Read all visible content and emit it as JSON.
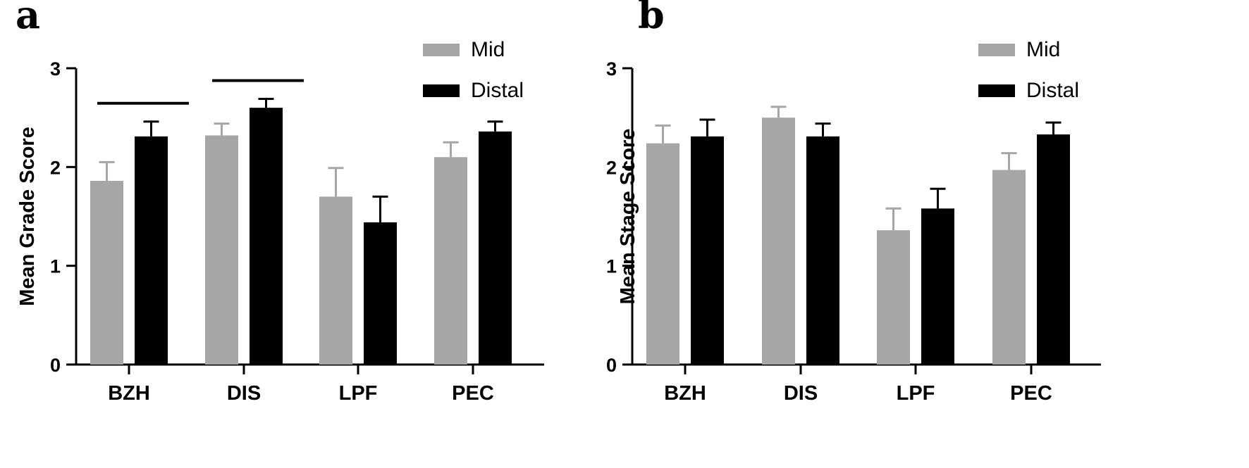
{
  "chart_data": [
    {
      "type": "bar",
      "panel": "a",
      "categories": [
        "BZH",
        "DIS",
        "LPF",
        "PEC"
      ],
      "ylabel": "Mean Grade Score",
      "xlabel": "",
      "ylim": [
        0,
        3
      ],
      "yticks": [
        0,
        1,
        2,
        3
      ],
      "series": [
        {
          "name": "Mid",
          "color": "#a6a6a6",
          "values": [
            1.86,
            2.32,
            1.7,
            2.1
          ],
          "errors": [
            0.19,
            0.12,
            0.29,
            0.15
          ]
        },
        {
          "name": "Distal",
          "color": "#000000",
          "values": [
            2.31,
            2.6,
            1.44,
            2.36
          ],
          "errors": [
            0.15,
            0.09,
            0.26,
            0.1
          ]
        }
      ],
      "significance_bars": [
        "BZH",
        "DIS"
      ],
      "legend": "top-right",
      "grid": false
    },
    {
      "type": "bar",
      "panel": "b",
      "categories": [
        "BZH",
        "DIS",
        "LPF",
        "PEC"
      ],
      "ylabel": "Mean Stage Score",
      "xlabel": "",
      "ylim": [
        0,
        3
      ],
      "yticks": [
        0,
        1,
        2,
        3
      ],
      "series": [
        {
          "name": "Mid",
          "color": "#a6a6a6",
          "values": [
            2.24,
            2.5,
            1.36,
            1.97
          ],
          "errors": [
            0.18,
            0.11,
            0.22,
            0.17
          ]
        },
        {
          "name": "Distal",
          "color": "#000000",
          "values": [
            2.31,
            2.31,
            1.58,
            2.33
          ],
          "errors": [
            0.17,
            0.13,
            0.2,
            0.12
          ]
        }
      ],
      "significance_bars": [],
      "legend": "top-right",
      "grid": false
    }
  ]
}
